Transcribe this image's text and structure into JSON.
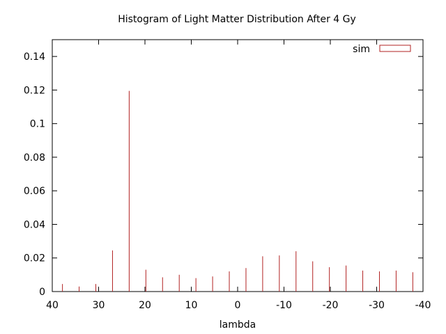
{
  "chart_data": {
    "type": "bar",
    "title": "Histogram of Light Matter Distribution After 4 Gy",
    "xlabel": "lambda",
    "ylabel": "",
    "xlim": [
      40,
      -40
    ],
    "ylim": [
      0,
      0.15
    ],
    "x_reversed": true,
    "grid": false,
    "legend_position": "top-right",
    "bar_color": "#b22222",
    "x_ticks": [
      40,
      30,
      20,
      10,
      0,
      -10,
      -20,
      -30,
      -40
    ],
    "x_tick_labels": [
      "40",
      "30",
      "20",
      "10",
      "0",
      "-10",
      "-20",
      "-30",
      "-40"
    ],
    "y_ticks": [
      0,
      0.02,
      0.04,
      0.06,
      0.08,
      0.1,
      0.12,
      0.14
    ],
    "y_tick_labels": [
      "0",
      "0.02",
      "0.04",
      "0.06",
      "0.08",
      "0.1",
      "0.12",
      "0.14"
    ],
    "series": [
      {
        "name": "sim",
        "x": [
          37.8,
          34.2,
          30.6,
          27.0,
          23.4,
          19.8,
          16.2,
          12.6,
          9.0,
          5.4,
          1.8,
          -1.8,
          -5.4,
          -9.0,
          -12.6,
          -16.2,
          -19.8,
          -23.4,
          -27.0,
          -30.6,
          -34.2,
          -37.8
        ],
        "values": [
          0.0045,
          0.003,
          0.0045,
          0.0245,
          0.1195,
          0.013,
          0.0085,
          0.01,
          0.008,
          0.009,
          0.012,
          0.014,
          0.021,
          0.0215,
          0.024,
          0.018,
          0.0145,
          0.0155,
          0.0125,
          0.012,
          0.0125,
          0.0115
        ]
      }
    ]
  }
}
